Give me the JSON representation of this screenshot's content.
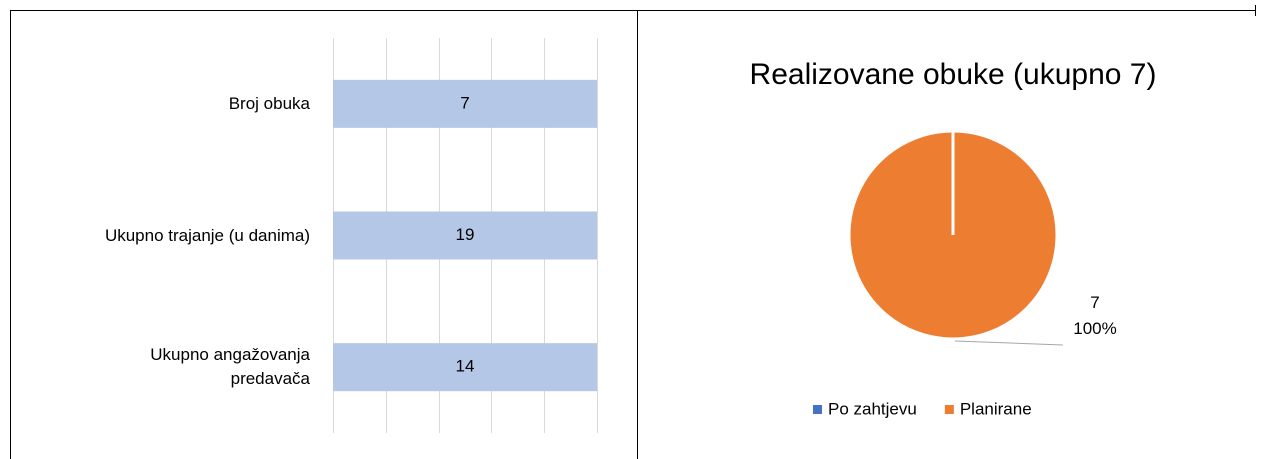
{
  "chart_data": [
    {
      "type": "bar",
      "orientation": "horizontal",
      "percent_stacked": true,
      "categories": [
        "Broj obuka",
        "Ukupno trajanje (u danima)",
        "Ukupno angažovanja\npredavača"
      ],
      "values": [
        7,
        19,
        14
      ],
      "color": "#b4c7e7",
      "xlim": [
        0,
        100
      ],
      "xticks": [
        0,
        20,
        40,
        60,
        80,
        100
      ],
      "grid": true
    },
    {
      "type": "pie",
      "title": "Realizovane obuke (ukupno 7)",
      "categories": [
        "Po zahtjevu",
        "Planirane"
      ],
      "values": [
        0,
        7
      ],
      "value_labels": [
        null,
        "7\n100%"
      ],
      "colors": [
        "#4472c4",
        "#ed7d31"
      ],
      "legend": "bottom"
    }
  ]
}
